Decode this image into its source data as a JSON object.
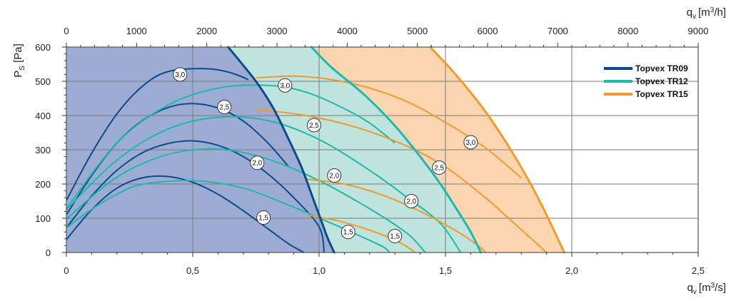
{
  "chart_data": {
    "type": "line",
    "axes": {
      "bottom": {
        "label_main": "q",
        "label_sub": "v",
        "label_unit": "[m",
        "label_sup": "3",
        "label_unit_end": "/s]",
        "min": 0,
        "max": 2.5,
        "ticks": [
          0,
          0.5,
          1.0,
          1.5,
          2.0,
          2.5
        ],
        "tick_labels": [
          "0",
          "0,5",
          "1,0",
          "1,5",
          "2,0",
          "2,5"
        ]
      },
      "top": {
        "label_main": "q",
        "label_sub": "v",
        "label_unit": "[m",
        "label_sup": "3",
        "label_unit_end": "/h]",
        "min": 0,
        "max": 9000,
        "ticks": [
          0,
          1000,
          2000,
          3000,
          4000,
          5000,
          6000,
          7000,
          8000,
          9000
        ],
        "tick_labels": [
          "0",
          "1000",
          "2000",
          "3000",
          "4000",
          "5000",
          "6000",
          "7000",
          "8000",
          "9000"
        ]
      },
      "left": {
        "label_main": "P",
        "label_sub": "S",
        "label_unit": " [Pa]",
        "min": 0,
        "max": 600,
        "ticks": [
          0,
          100,
          200,
          300,
          400,
          500,
          600
        ],
        "tick_labels": [
          "0",
          "100",
          "200",
          "300",
          "400",
          "500",
          "600"
        ]
      }
    },
    "grid": true,
    "legend": {
      "position": "top-right",
      "entries": [
        {
          "name": "Topvex TR09",
          "color": "#0d4a8f"
        },
        {
          "name": "Topvex TR12",
          "color": "#1fb8ad"
        },
        {
          "name": "Topvex TR15",
          "color": "#f29a2e"
        }
      ]
    },
    "regions": [
      {
        "name": "Topvex TR09",
        "fill": "#9dacd2",
        "boundary": [
          [
            0.64,
            600
          ],
          [
            0.75,
            500
          ],
          [
            0.82,
            420
          ],
          [
            0.88,
            330
          ],
          [
            0.93,
            250
          ],
          [
            0.97,
            170
          ],
          [
            1.01,
            90
          ],
          [
            1.035,
            40
          ],
          [
            1.06,
            0
          ]
        ]
      },
      {
        "name": "Topvex TR12",
        "fill": "#bfe3dd",
        "boundary": [
          [
            0.97,
            600
          ],
          [
            1.05,
            540
          ],
          [
            1.18,
            460
          ],
          [
            1.3,
            370
          ],
          [
            1.4,
            280
          ],
          [
            1.48,
            200
          ],
          [
            1.55,
            120
          ],
          [
            1.6,
            60
          ],
          [
            1.64,
            0
          ]
        ]
      },
      {
        "name": "Topvex TR15",
        "fill": "#fbd5b0",
        "boundary": [
          [
            1.44,
            600
          ],
          [
            1.54,
            520
          ],
          [
            1.65,
            420
          ],
          [
            1.75,
            310
          ],
          [
            1.83,
            210
          ],
          [
            1.9,
            110
          ],
          [
            1.97,
            0
          ]
        ]
      }
    ],
    "series": [
      {
        "name": "Topvex TR09",
        "color": "#0d4a8f",
        "width": 2,
        "curves": [
          {
            "label": "1,5",
            "points": [
              [
                0,
                38
              ],
              [
                0.1,
                125
              ],
              [
                0.2,
                188
              ],
              [
                0.3,
                218
              ],
              [
                0.4,
                222
              ],
              [
                0.5,
                205
              ],
              [
                0.6,
                170
              ],
              [
                0.7,
                122
              ],
              [
                0.8,
                68
              ],
              [
                0.88,
                25
              ],
              [
                0.94,
                0
              ]
            ]
          },
          {
            "label": "2,0",
            "points": [
              [
                0,
                72
              ],
              [
                0.1,
                165
              ],
              [
                0.2,
                240
              ],
              [
                0.3,
                291
              ],
              [
                0.4,
                318
              ],
              [
                0.5,
                326
              ],
              [
                0.6,
                313
              ],
              [
                0.7,
                280
              ],
              [
                0.8,
                228
              ],
              [
                0.9,
                160
              ],
              [
                1.0,
                75
              ],
              [
                1.02,
                0
              ]
            ]
          },
          {
            "label": "2,5",
            "points": [
              [
                0,
                110
              ],
              [
                0.1,
                225
              ],
              [
                0.2,
                320
              ],
              [
                0.3,
                385
              ],
              [
                0.4,
                423
              ],
              [
                0.5,
                435
              ],
              [
                0.6,
                422
              ],
              [
                0.7,
                384
              ],
              [
                0.8,
                318
              ],
              [
                0.88,
                250
              ]
            ]
          },
          {
            "label": "3,0",
            "points": [
              [
                0,
                152
              ],
              [
                0.1,
                290
              ],
              [
                0.2,
                405
              ],
              [
                0.3,
                485
              ],
              [
                0.4,
                528
              ],
              [
                0.55,
                537
              ],
              [
                0.65,
                525
              ],
              [
                0.72,
                505
              ]
            ]
          }
        ]
      },
      {
        "name": "Topvex TR12",
        "color": "#1fb8ad",
        "width": 2,
        "curves": [
          {
            "label": "1,5",
            "points": [
              [
                0,
                72
              ],
              [
                0.1,
                126
              ],
              [
                0.2,
                170
              ],
              [
                0.3,
                199
              ],
              [
                0.5,
                210
              ],
              [
                0.7,
                188
              ],
              [
                0.9,
                132
              ],
              [
                1.05,
                85
              ],
              [
                1.15,
                52
              ],
              [
                1.25,
                18
              ],
              [
                1.28,
                0
              ]
            ]
          },
          {
            "label": "2,0",
            "points": [
              [
                0,
                98
              ],
              [
                0.2,
                220
              ],
              [
                0.4,
                286
              ],
              [
                0.6,
                302
              ],
              [
                0.8,
                272
              ],
              [
                1.0,
                210
              ],
              [
                1.2,
                128
              ],
              [
                1.35,
                55
              ],
              [
                1.42,
                0
              ]
            ]
          },
          {
            "label": "2,5",
            "points": [
              [
                0,
                125
              ],
              [
                0.2,
                270
              ],
              [
                0.4,
                360
              ],
              [
                0.6,
                395
              ],
              [
                0.8,
                385
              ],
              [
                1.0,
                330
              ],
              [
                1.2,
                240
              ],
              [
                1.35,
                160
              ],
              [
                1.48,
                85
              ],
              [
                1.56,
                0
              ]
            ]
          },
          {
            "label": "3,0",
            "points": [
              [
                0,
                128
              ],
              [
                0.2,
                320
              ],
              [
                0.4,
                430
              ],
              [
                0.6,
                480
              ],
              [
                0.8,
                488
              ],
              [
                0.95,
                468
              ],
              [
                1.1,
                420
              ],
              [
                1.2,
                378
              ],
              [
                1.3,
                320
              ]
            ]
          }
        ]
      },
      {
        "name": "Topvex TR15",
        "color": "#f29a2e",
        "width": 2,
        "curves": [
          {
            "label": "1,5",
            "points": [
              [
                0.95,
                110
              ],
              [
                1.1,
                88
              ],
              [
                1.25,
                52
              ],
              [
                1.33,
                25
              ],
              [
                1.38,
                0
              ]
            ]
          },
          {
            "label": "2,0",
            "points": [
              [
                0.95,
                214
              ],
              [
                1.1,
                200
              ],
              [
                1.25,
                168
              ],
              [
                1.4,
                120
              ],
              [
                1.55,
                60
              ],
              [
                1.62,
                25
              ],
              [
                1.66,
                0
              ]
            ]
          },
          {
            "label": "2,5",
            "points": [
              [
                0.75,
                418
              ],
              [
                0.95,
                400
              ],
              [
                1.15,
                365
              ],
              [
                1.35,
                310
              ],
              [
                1.5,
                250
              ],
              [
                1.65,
                165
              ],
              [
                1.75,
                100
              ],
              [
                1.84,
                40
              ],
              [
                1.9,
                0
              ]
            ]
          },
          {
            "label": "3,0",
            "points": [
              [
                0.75,
                510
              ],
              [
                0.9,
                515
              ],
              [
                1.05,
                505
              ],
              [
                1.2,
                480
              ],
              [
                1.35,
                440
              ],
              [
                1.5,
                380
              ],
              [
                1.65,
                310
              ],
              [
                1.75,
                250
              ],
              [
                1.8,
                218
              ]
            ]
          }
        ]
      },
      {
        "name": "Topvex TR09",
        "color": "#0d4a8f",
        "width": 3,
        "boundary": true,
        "points": [
          [
            0.64,
            600
          ],
          [
            0.75,
            500
          ],
          [
            0.82,
            420
          ],
          [
            0.88,
            330
          ],
          [
            0.93,
            250
          ],
          [
            0.97,
            170
          ],
          [
            1.01,
            90
          ],
          [
            1.035,
            40
          ],
          [
            1.06,
            0
          ]
        ]
      },
      {
        "name": "Topvex TR12",
        "color": "#1fb8ad",
        "width": 3,
        "boundary": true,
        "points": [
          [
            0.97,
            600
          ],
          [
            1.05,
            540
          ],
          [
            1.18,
            460
          ],
          [
            1.3,
            370
          ],
          [
            1.4,
            280
          ],
          [
            1.48,
            200
          ],
          [
            1.55,
            120
          ],
          [
            1.6,
            60
          ],
          [
            1.64,
            0
          ]
        ]
      },
      {
        "name": "Topvex TR15",
        "color": "#f29a2e",
        "width": 3,
        "boundary": true,
        "points": [
          [
            1.44,
            600
          ],
          [
            1.54,
            520
          ],
          [
            1.65,
            420
          ],
          [
            1.75,
            310
          ],
          [
            1.83,
            210
          ],
          [
            1.9,
            110
          ],
          [
            1.97,
            0
          ]
        ]
      }
    ],
    "curve_labels": [
      {
        "text": "3,0",
        "x": 0.45,
        "y": 520
      },
      {
        "text": "2,5",
        "x": 0.625,
        "y": 425
      },
      {
        "text": "2,0",
        "x": 0.755,
        "y": 262
      },
      {
        "text": "1,5",
        "x": 0.78,
        "y": 102
      },
      {
        "text": "3,0",
        "x": 0.865,
        "y": 488
      },
      {
        "text": "2,5",
        "x": 0.98,
        "y": 372
      },
      {
        "text": "2,0",
        "x": 1.06,
        "y": 225
      },
      {
        "text": "1,5",
        "x": 1.115,
        "y": 60
      },
      {
        "text": "3,0",
        "x": 1.6,
        "y": 322
      },
      {
        "text": "2,5",
        "x": 1.475,
        "y": 248
      },
      {
        "text": "2,0",
        "x": 1.365,
        "y": 150
      },
      {
        "text": "1,5",
        "x": 1.3,
        "y": 48
      }
    ]
  }
}
